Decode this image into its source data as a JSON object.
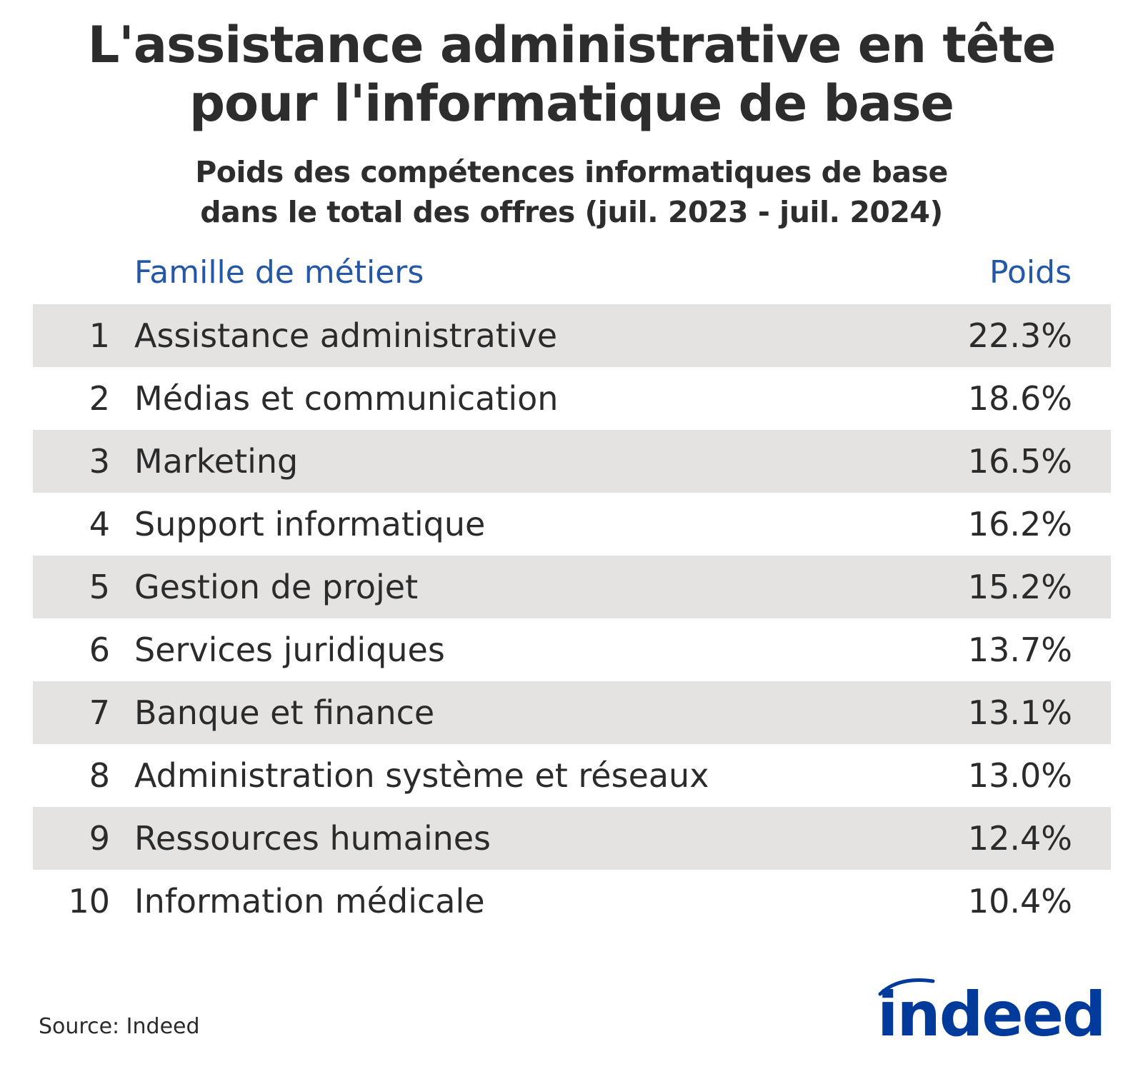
{
  "title_lines": [
    "L'assistance administrative en tête",
    "pour l'informatique de base"
  ],
  "subtitle_lines": [
    "Poids des compétences informatiques de base",
    "dans le total des offres (juil. 2023 - juil. 2024)"
  ],
  "columns": {
    "family": "Famille de métiers",
    "weight": "Poids"
  },
  "colors": {
    "header_blue": "#2557a7",
    "stripe": "#e4e3e2",
    "text": "#2b2b2b",
    "logo_blue": "#003a9b"
  },
  "source": "Source: Indeed",
  "logo": {
    "text": "indeed",
    "icon": "indeed-logo-icon"
  },
  "chart_data": {
    "type": "table",
    "title": "L'assistance administrative en tête pour l'informatique de base",
    "subtitle": "Poids des compétences informatiques de base dans le total des offres (juil. 2023 - juil. 2024)",
    "columns": [
      "",
      "Famille de métiers",
      "Poids"
    ],
    "rows": [
      {
        "rank": "1",
        "family": "Assistance administrative",
        "weight": "22.3%",
        "value": 22.3
      },
      {
        "rank": "2",
        "family": "Médias et communication",
        "weight": "18.6%",
        "value": 18.6
      },
      {
        "rank": "3",
        "family": "Marketing",
        "weight": "16.5%",
        "value": 16.5
      },
      {
        "rank": "4",
        "family": "Support informatique",
        "weight": "16.2%",
        "value": 16.2
      },
      {
        "rank": "5",
        "family": "Gestion de projet",
        "weight": "15.2%",
        "value": 15.2
      },
      {
        "rank": "6",
        "family": "Services juridiques",
        "weight": "13.7%",
        "value": 13.7
      },
      {
        "rank": "7",
        "family": "Banque et finance",
        "weight": "13.1%",
        "value": 13.1
      },
      {
        "rank": "8",
        "family": "Administration système et réseaux",
        "weight": "13.0%",
        "value": 13.0
      },
      {
        "rank": "9",
        "family": "Ressources humaines",
        "weight": "12.4%",
        "value": 12.4
      },
      {
        "rank": "10",
        "family": "Information médicale",
        "weight": "10.4%",
        "value": 10.4
      }
    ],
    "source": "Source: Indeed"
  }
}
